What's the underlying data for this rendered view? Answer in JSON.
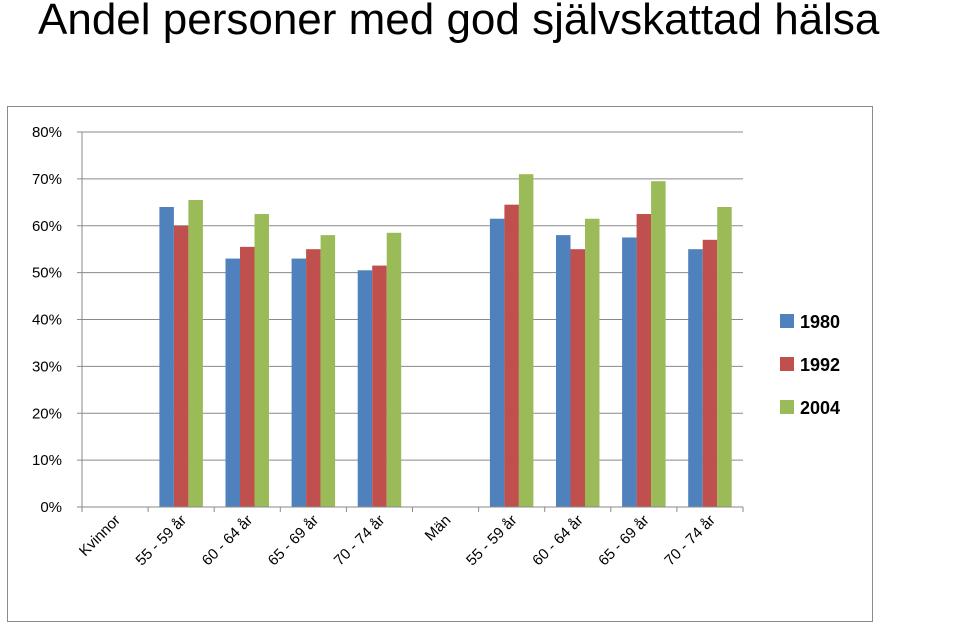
{
  "title": "Andel personer med god självskattad hälsa",
  "chart_data": {
    "type": "bar",
    "title": "",
    "xlabel": "",
    "ylabel": "",
    "ylim": [
      0,
      80
    ],
    "y_unit": "%",
    "y_ticks": [
      "0%",
      "10%",
      "20%",
      "30%",
      "40%",
      "50%",
      "60%",
      "70%",
      "80%"
    ],
    "grid": true,
    "legend_position": "right",
    "categories": [
      "Kvinnor",
      "55 - 59 år",
      "60 - 64 år",
      "65 - 69 år",
      "70 - 74 år",
      "Män",
      "55 - 59 år",
      "60 - 64 år",
      "65 - 69 år",
      "70 - 74 år"
    ],
    "series": [
      {
        "name": "1980",
        "color": "#4f81bd",
        "values": [
          null,
          64,
          53,
          53,
          50.5,
          null,
          61.5,
          58,
          57.5,
          55
        ]
      },
      {
        "name": "1992",
        "color": "#c0504d",
        "values": [
          null,
          60,
          55.5,
          55,
          51.5,
          null,
          64.5,
          55,
          62.5,
          57
        ]
      },
      {
        "name": "2004",
        "color": "#9bbb59",
        "values": [
          null,
          65.5,
          62.5,
          58,
          58.5,
          null,
          71,
          61.5,
          69.5,
          64
        ]
      }
    ]
  }
}
